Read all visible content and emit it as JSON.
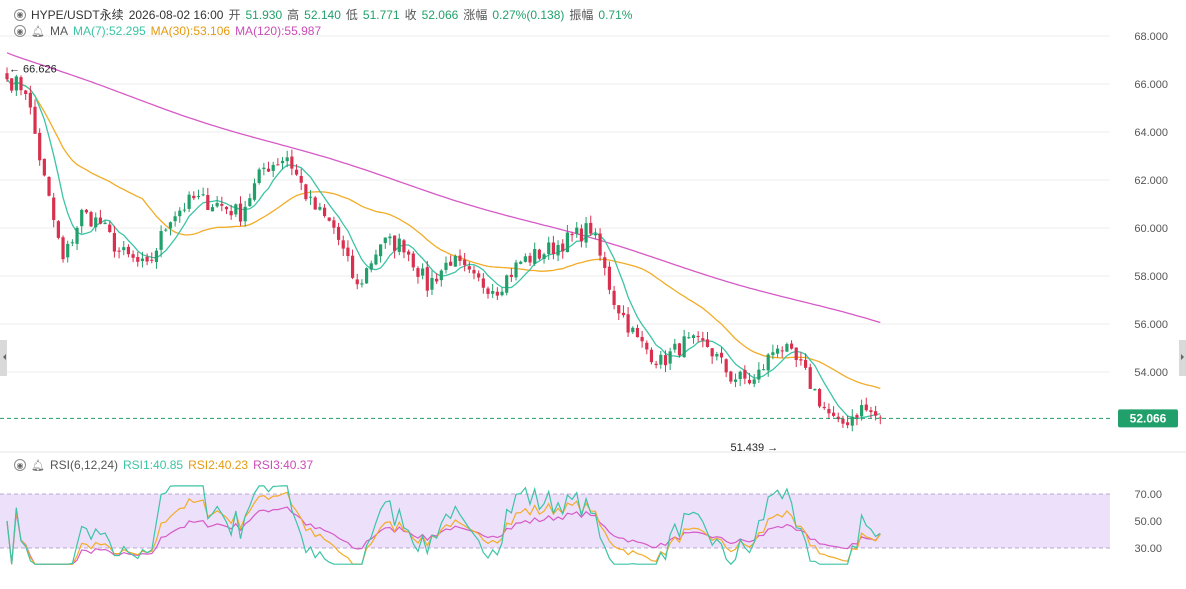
{
  "header": {
    "symbol": "HYPE/USDT永续",
    "datetime": "2026-08-02 16:00",
    "open_label": "开",
    "open": "51.930",
    "high_label": "高",
    "high": "52.140",
    "low_label": "低",
    "low": "51.771",
    "close_label": "收",
    "close": "52.066",
    "change_label": "涨幅",
    "change": "0.27%(0.138)",
    "amplitude_label": "振幅",
    "amplitude": "0.71%"
  },
  "ma_legend": {
    "name": "MA",
    "ma7": "MA(7):52.295",
    "ma30": "MA(30):53.106",
    "ma120": "MA(120):55.987"
  },
  "rsi_legend": {
    "name": "RSI(6,12,24)",
    "rsi1": "RSI1:40.85",
    "rsi2": "RSI2:40.23",
    "rsi3": "RSI3:40.37"
  },
  "colors": {
    "up": "#22a06b",
    "down": "#d9304f",
    "ma7": "#3cc4a5",
    "ma30": "#f2ac27",
    "ma120": "#d65ac6",
    "rsi1": "#3cc4a5",
    "rsi2": "#f2ac27",
    "rsi3": "#d65ac6",
    "rsi_band": "#ede0fb",
    "price_tag": "#22a06b",
    "grid": "#eeeeee"
  },
  "icons": [
    "eye-icon",
    "bell-icon",
    "left-arrow-icon",
    "right-arrow-icon"
  ],
  "chart_data": [
    {
      "type": "candlestick",
      "y_ticks": [
        "68.000",
        "66.000",
        "64.000",
        "62.000",
        "60.000",
        "58.000",
        "56.000",
        "54.000"
      ],
      "ylim": [
        51.0,
        68.9
      ],
      "current_price": "52.066",
      "max_annotation": {
        "label": "66.626",
        "index": 0
      },
      "min_annotation": {
        "label": "51.439",
        "index": 166
      },
      "grid": true,
      "waypoints": [
        [
          0,
          66.2
        ],
        [
          4,
          65.8
        ],
        [
          8,
          62.0
        ],
        [
          12,
          58.6
        ],
        [
          16,
          60.6
        ],
        [
          20,
          60.2
        ],
        [
          24,
          59.0
        ],
        [
          30,
          58.3
        ],
        [
          35,
          60.5
        ],
        [
          40,
          61.2
        ],
        [
          45,
          61.0
        ],
        [
          50,
          60.6
        ],
        [
          55,
          62.5
        ],
        [
          60,
          63.0
        ],
        [
          65,
          61.0
        ],
        [
          70,
          60.0
        ],
        [
          75,
          57.5
        ],
        [
          80,
          59.4
        ],
        [
          85,
          59.3
        ],
        [
          90,
          57.6
        ],
        [
          95,
          58.7
        ],
        [
          100,
          57.8
        ],
        [
          105,
          57.5
        ],
        [
          110,
          58.6
        ],
        [
          115,
          59.0
        ],
        [
          120,
          59.5
        ],
        [
          125,
          60.0
        ],
        [
          130,
          57.0
        ],
        [
          135,
          55.3
        ],
        [
          140,
          54.4
        ],
        [
          145,
          55.2
        ],
        [
          150,
          55.1
        ],
        [
          155,
          53.8
        ],
        [
          160,
          53.6
        ],
        [
          165,
          55.2
        ],
        [
          170,
          54.2
        ],
        [
          175,
          52.5
        ],
        [
          178,
          51.7
        ],
        [
          183,
          52.5
        ],
        [
          187,
          52.066
        ]
      ],
      "ma120_initial": 67.3,
      "ma120_last": 55.987
    },
    {
      "type": "line",
      "title": "RSI(6,12,24)",
      "y_ticks": [
        "70.00",
        "50.00",
        "30.00"
      ],
      "ylim": [
        16,
        78
      ],
      "series": [
        {
          "name": "RSI1",
          "last": 40.85
        },
        {
          "name": "RSI2",
          "last": 40.23
        },
        {
          "name": "RSI3",
          "last": 40.37
        }
      ]
    }
  ]
}
